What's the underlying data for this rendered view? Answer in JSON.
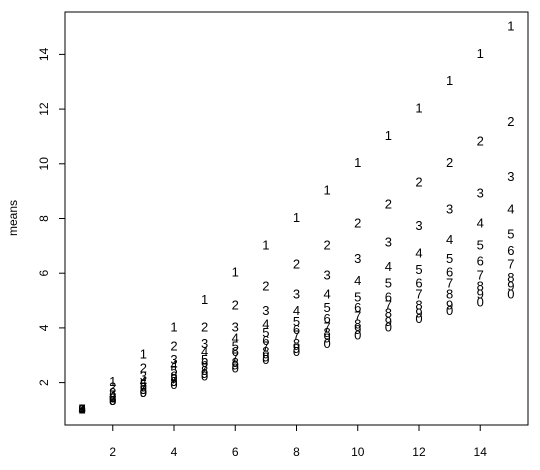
{
  "chart_data": {
    "type": "scatter",
    "y_label": "means",
    "x": [
      1,
      2,
      3,
      4,
      5,
      6,
      7,
      8,
      9,
      10,
      11,
      12,
      13,
      14,
      15
    ],
    "xlim": [
      0.44,
      15.56
    ],
    "xticks": [
      2,
      4,
      6,
      8,
      10,
      12,
      14
    ],
    "ylim": [
      0.45,
      15.55
    ],
    "yticks": [
      2,
      4,
      6,
      8,
      10,
      12,
      14
    ],
    "series": [
      {
        "name": "1",
        "color": "#000000",
        "values": [
          1,
          2,
          3,
          4,
          5,
          6,
          7,
          8,
          9,
          10,
          11,
          12,
          13,
          14,
          15
        ]
      },
      {
        "name": "2",
        "color": "#df0000",
        "values": [
          1,
          1.8,
          2.5,
          3.3,
          4,
          4.8,
          5.5,
          6.3,
          7,
          7.8,
          8.5,
          9.3,
          10,
          10.8,
          11.5
        ]
      },
      {
        "name": "3",
        "color": "#22c122",
        "values": [
          1,
          1.6,
          2.2,
          2.8,
          3.4,
          4,
          4.6,
          5.2,
          5.9,
          6.5,
          7.1,
          7.7,
          8.3,
          8.9,
          9.5
        ]
      },
      {
        "name": "4",
        "color": "#1a1adf",
        "values": [
          1,
          1.5,
          2,
          2.6,
          3.1,
          3.6,
          4.1,
          4.6,
          5.2,
          5.7,
          6.2,
          6.7,
          7.2,
          7.8,
          8.3
        ]
      },
      {
        "name": "5",
        "color": "#22dfdf",
        "values": [
          1,
          1.5,
          1.9,
          2.4,
          2.8,
          3.3,
          3.8,
          4.2,
          4.7,
          5.1,
          5.6,
          6.1,
          6.5,
          7,
          7.4
        ]
      },
      {
        "name": "6",
        "color": "#df22df",
        "values": [
          1,
          1.4,
          1.8,
          2.2,
          2.7,
          3.1,
          3.5,
          3.9,
          4.3,
          4.7,
          5.1,
          5.6,
          6,
          6.4,
          6.8
        ]
      },
      {
        "name": "7",
        "color": "#000000",
        "values": [
          1,
          1.4,
          1.8,
          2.1,
          2.5,
          2.9,
          3.3,
          3.7,
          4,
          4.4,
          4.8,
          5.2,
          5.6,
          5.9,
          6.3
        ]
      },
      {
        "name": "8",
        "color": "#df0000",
        "values": [
          1,
          1.3,
          1.7,
          2,
          2.4,
          2.7,
          3.1,
          3.4,
          3.8,
          4.1,
          4.5,
          4.8,
          5.2,
          5.5,
          5.8
        ]
      },
      {
        "name": "9",
        "color": "#22c122",
        "values": [
          1,
          1.3,
          1.6,
          2,
          2.3,
          2.6,
          2.9,
          3.2,
          3.6,
          3.9,
          4.2,
          4.5,
          4.8,
          5.2,
          5.5
        ]
      },
      {
        "name": "0",
        "color": "#1a1adf",
        "values": [
          1,
          1.3,
          1.6,
          1.9,
          2.2,
          2.5,
          2.8,
          3.1,
          3.4,
          3.7,
          4,
          4.3,
          4.6,
          4.9,
          5.2
        ]
      }
    ]
  }
}
